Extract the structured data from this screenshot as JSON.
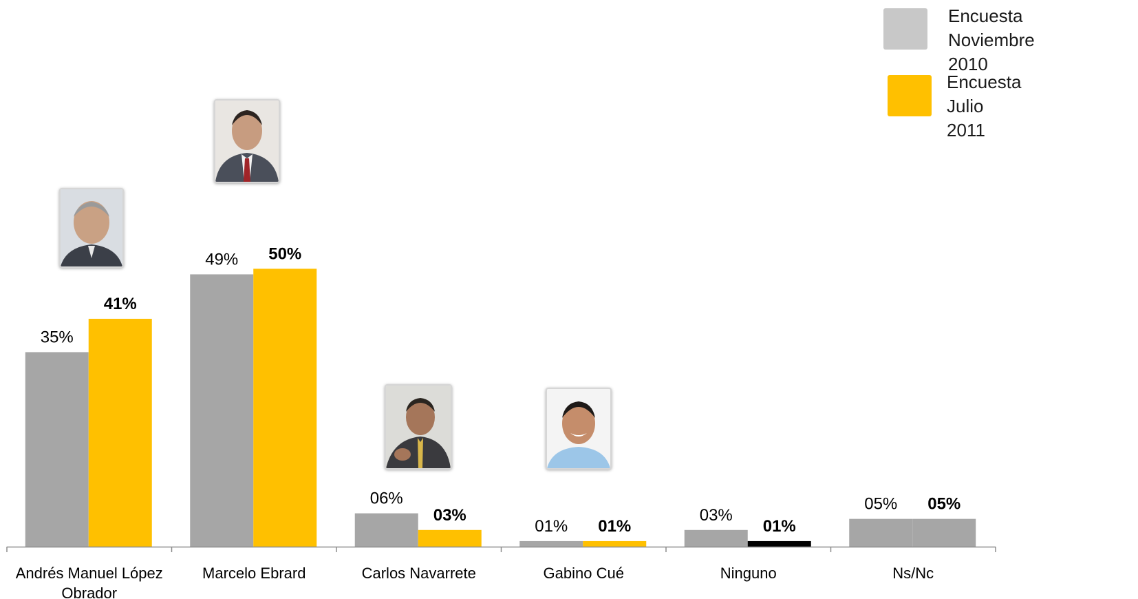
{
  "chart_data": {
    "type": "bar",
    "categories": [
      "Andrés Manuel López\nObrador",
      "Marcelo Ebrard",
      "Carlos Navarrete",
      "Gabino Cué",
      "Ninguno",
      "Ns/Nc"
    ],
    "series": [
      {
        "name": "Encuesta Noviembre 2010",
        "values": [
          35,
          49,
          6,
          1,
          3,
          5
        ],
        "labels": [
          "35%",
          "49%",
          "06%",
          "01%",
          "03%",
          "05%"
        ],
        "color": "#a6a6a6"
      },
      {
        "name": "Encuesta Julio 2011",
        "values": [
          41,
          50,
          3,
          1,
          1,
          5
        ],
        "labels": [
          "41%",
          "50%",
          "03%",
          "01%",
          "01%",
          "05%"
        ],
        "color": "#ffc000",
        "point_colors": [
          "#ffc000",
          "#ffc000",
          "#ffc000",
          "#ffc000",
          "#000000",
          "#a6a6a6"
        ]
      }
    ],
    "ylim": [
      0,
      55
    ],
    "legend_position": "top-right",
    "grid": false
  },
  "legend": {
    "items": [
      {
        "line1": "Encuesta Noviembre",
        "line2": "2010",
        "color": "#c8c8c8"
      },
      {
        "line1": "Encuesta Julio",
        "line2": "2011",
        "color": "#ffc000"
      }
    ]
  },
  "photos": [
    {
      "icon": "portrait-icon",
      "category": 0
    },
    {
      "icon": "portrait-icon",
      "category": 1
    },
    {
      "icon": "portrait-icon",
      "category": 2
    },
    {
      "icon": "portrait-icon",
      "category": 3
    }
  ]
}
